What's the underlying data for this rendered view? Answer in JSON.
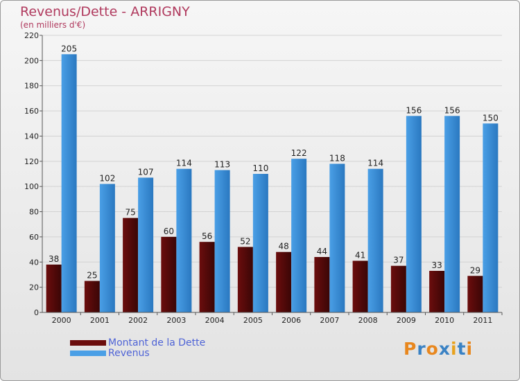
{
  "title": "Revenus/Dette - ARRIGNY",
  "subtitle": "(en milliers d'€)",
  "logo": {
    "text": "Proxiti",
    "letters": [
      {
        "ch": "P",
        "color": "#e8871e"
      },
      {
        "ch": "r",
        "color": "#3a82c4"
      },
      {
        "ch": "o",
        "color": "#e8871e"
      },
      {
        "ch": "x",
        "color": "#3a82c4"
      },
      {
        "ch": "i",
        "color": "#e8a21e"
      },
      {
        "ch": "t",
        "color": "#3a82c4"
      },
      {
        "ch": "i",
        "color": "#e8871e"
      }
    ]
  },
  "legend": {
    "items": [
      {
        "label": "Montant de la Dette",
        "color": "#6b0d0d"
      },
      {
        "label": "Revenus",
        "color": "#4a9fe6"
      }
    ]
  },
  "chart_data": {
    "type": "bar",
    "categories": [
      "2000",
      "2001",
      "2002",
      "2003",
      "2004",
      "2005",
      "2006",
      "2007",
      "2008",
      "2009",
      "2010",
      "2011"
    ],
    "series": [
      {
        "name": "Montant de la Dette",
        "color": "#6b0d0d",
        "values": [
          38,
          25,
          75,
          60,
          56,
          52,
          48,
          44,
          41,
          37,
          33,
          29
        ]
      },
      {
        "name": "Revenus",
        "color": "#4a9fe6",
        "values": [
          205,
          102,
          107,
          114,
          113,
          110,
          122,
          118,
          114,
          156,
          156,
          150
        ]
      }
    ],
    "ylim": [
      0,
      220
    ],
    "yticks": [
      0,
      20,
      40,
      60,
      80,
      100,
      120,
      140,
      160,
      180,
      200,
      220
    ],
    "grid": true
  }
}
